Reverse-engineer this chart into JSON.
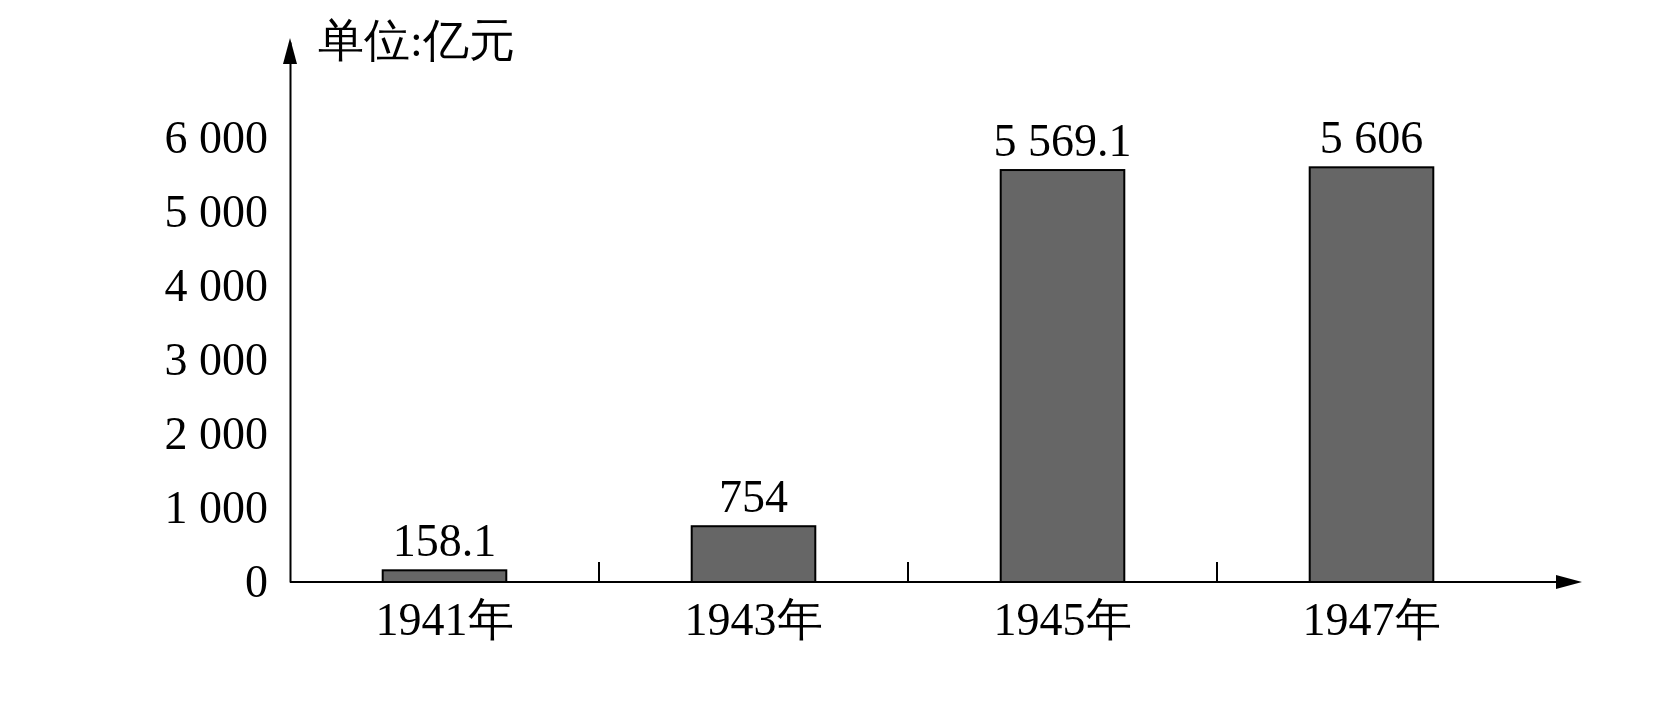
{
  "chart_data": {
    "type": "bar",
    "ylabel": "单位:亿元",
    "categories": [
      "1941年",
      "1943年",
      "1945年",
      "1947年"
    ],
    "values": [
      158.1,
      754,
      5569.1,
      5606
    ],
    "color": "#666666",
    "ylim": [
      0,
      7300
    ],
    "yticks": [
      {
        "value": 0,
        "label": "0"
      },
      {
        "value": 1000,
        "label": "1 000"
      },
      {
        "value": 2000,
        "label": "2 000"
      },
      {
        "value": 3000,
        "label": "3 000"
      },
      {
        "value": 4000,
        "label": "4 000"
      },
      {
        "value": 5000,
        "label": "5 000"
      },
      {
        "value": 6000,
        "label": "6 000"
      }
    ],
    "data_labels": true,
    "value_labels": [
      "158.1",
      "754",
      "5 569.1",
      "5 606"
    ],
    "grid": false
  }
}
